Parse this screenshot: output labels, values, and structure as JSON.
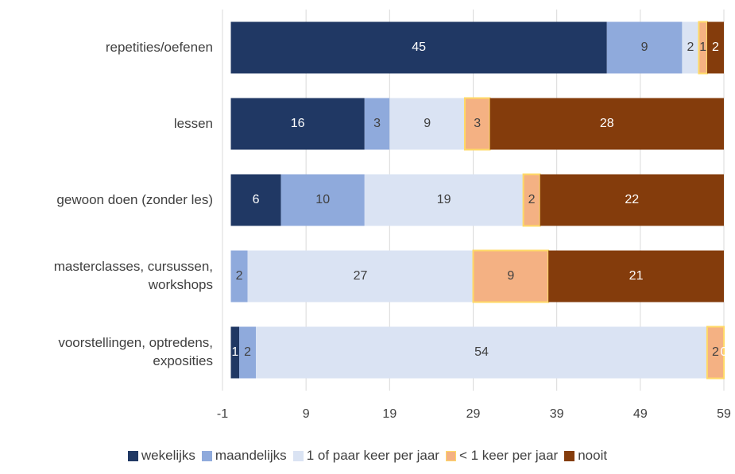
{
  "chart_data": {
    "type": "stacked_barh",
    "categories": [
      "repetities/oefenen",
      "lessen",
      "gewoon doen (zonder les)",
      "masterclasses, cursussen, workshops",
      "voorstellingen, optredens, exposities"
    ],
    "series": [
      {
        "name": "wekelijks",
        "color": "#203864",
        "values": [
          45,
          16,
          6,
          0,
          1
        ]
      },
      {
        "name": "maandelijks",
        "color": "#8faadc",
        "values": [
          9,
          3,
          10,
          2,
          2
        ]
      },
      {
        "name": "1 of paar keer per jaar",
        "color": "#dae3f3",
        "values": [
          2,
          9,
          19,
          27,
          54
        ]
      },
      {
        "name": "< 1 keer per jaar",
        "color": "#f4b183",
        "values": [
          1,
          3,
          2,
          9,
          2
        ]
      },
      {
        "name": "nooit",
        "color": "#843c0c",
        "values": [
          2,
          28,
          22,
          21,
          0
        ]
      }
    ],
    "xlim": [
      -1,
      59
    ],
    "xticks": [
      -1,
      9,
      19,
      29,
      39,
      49,
      59
    ],
    "grid": true
  }
}
